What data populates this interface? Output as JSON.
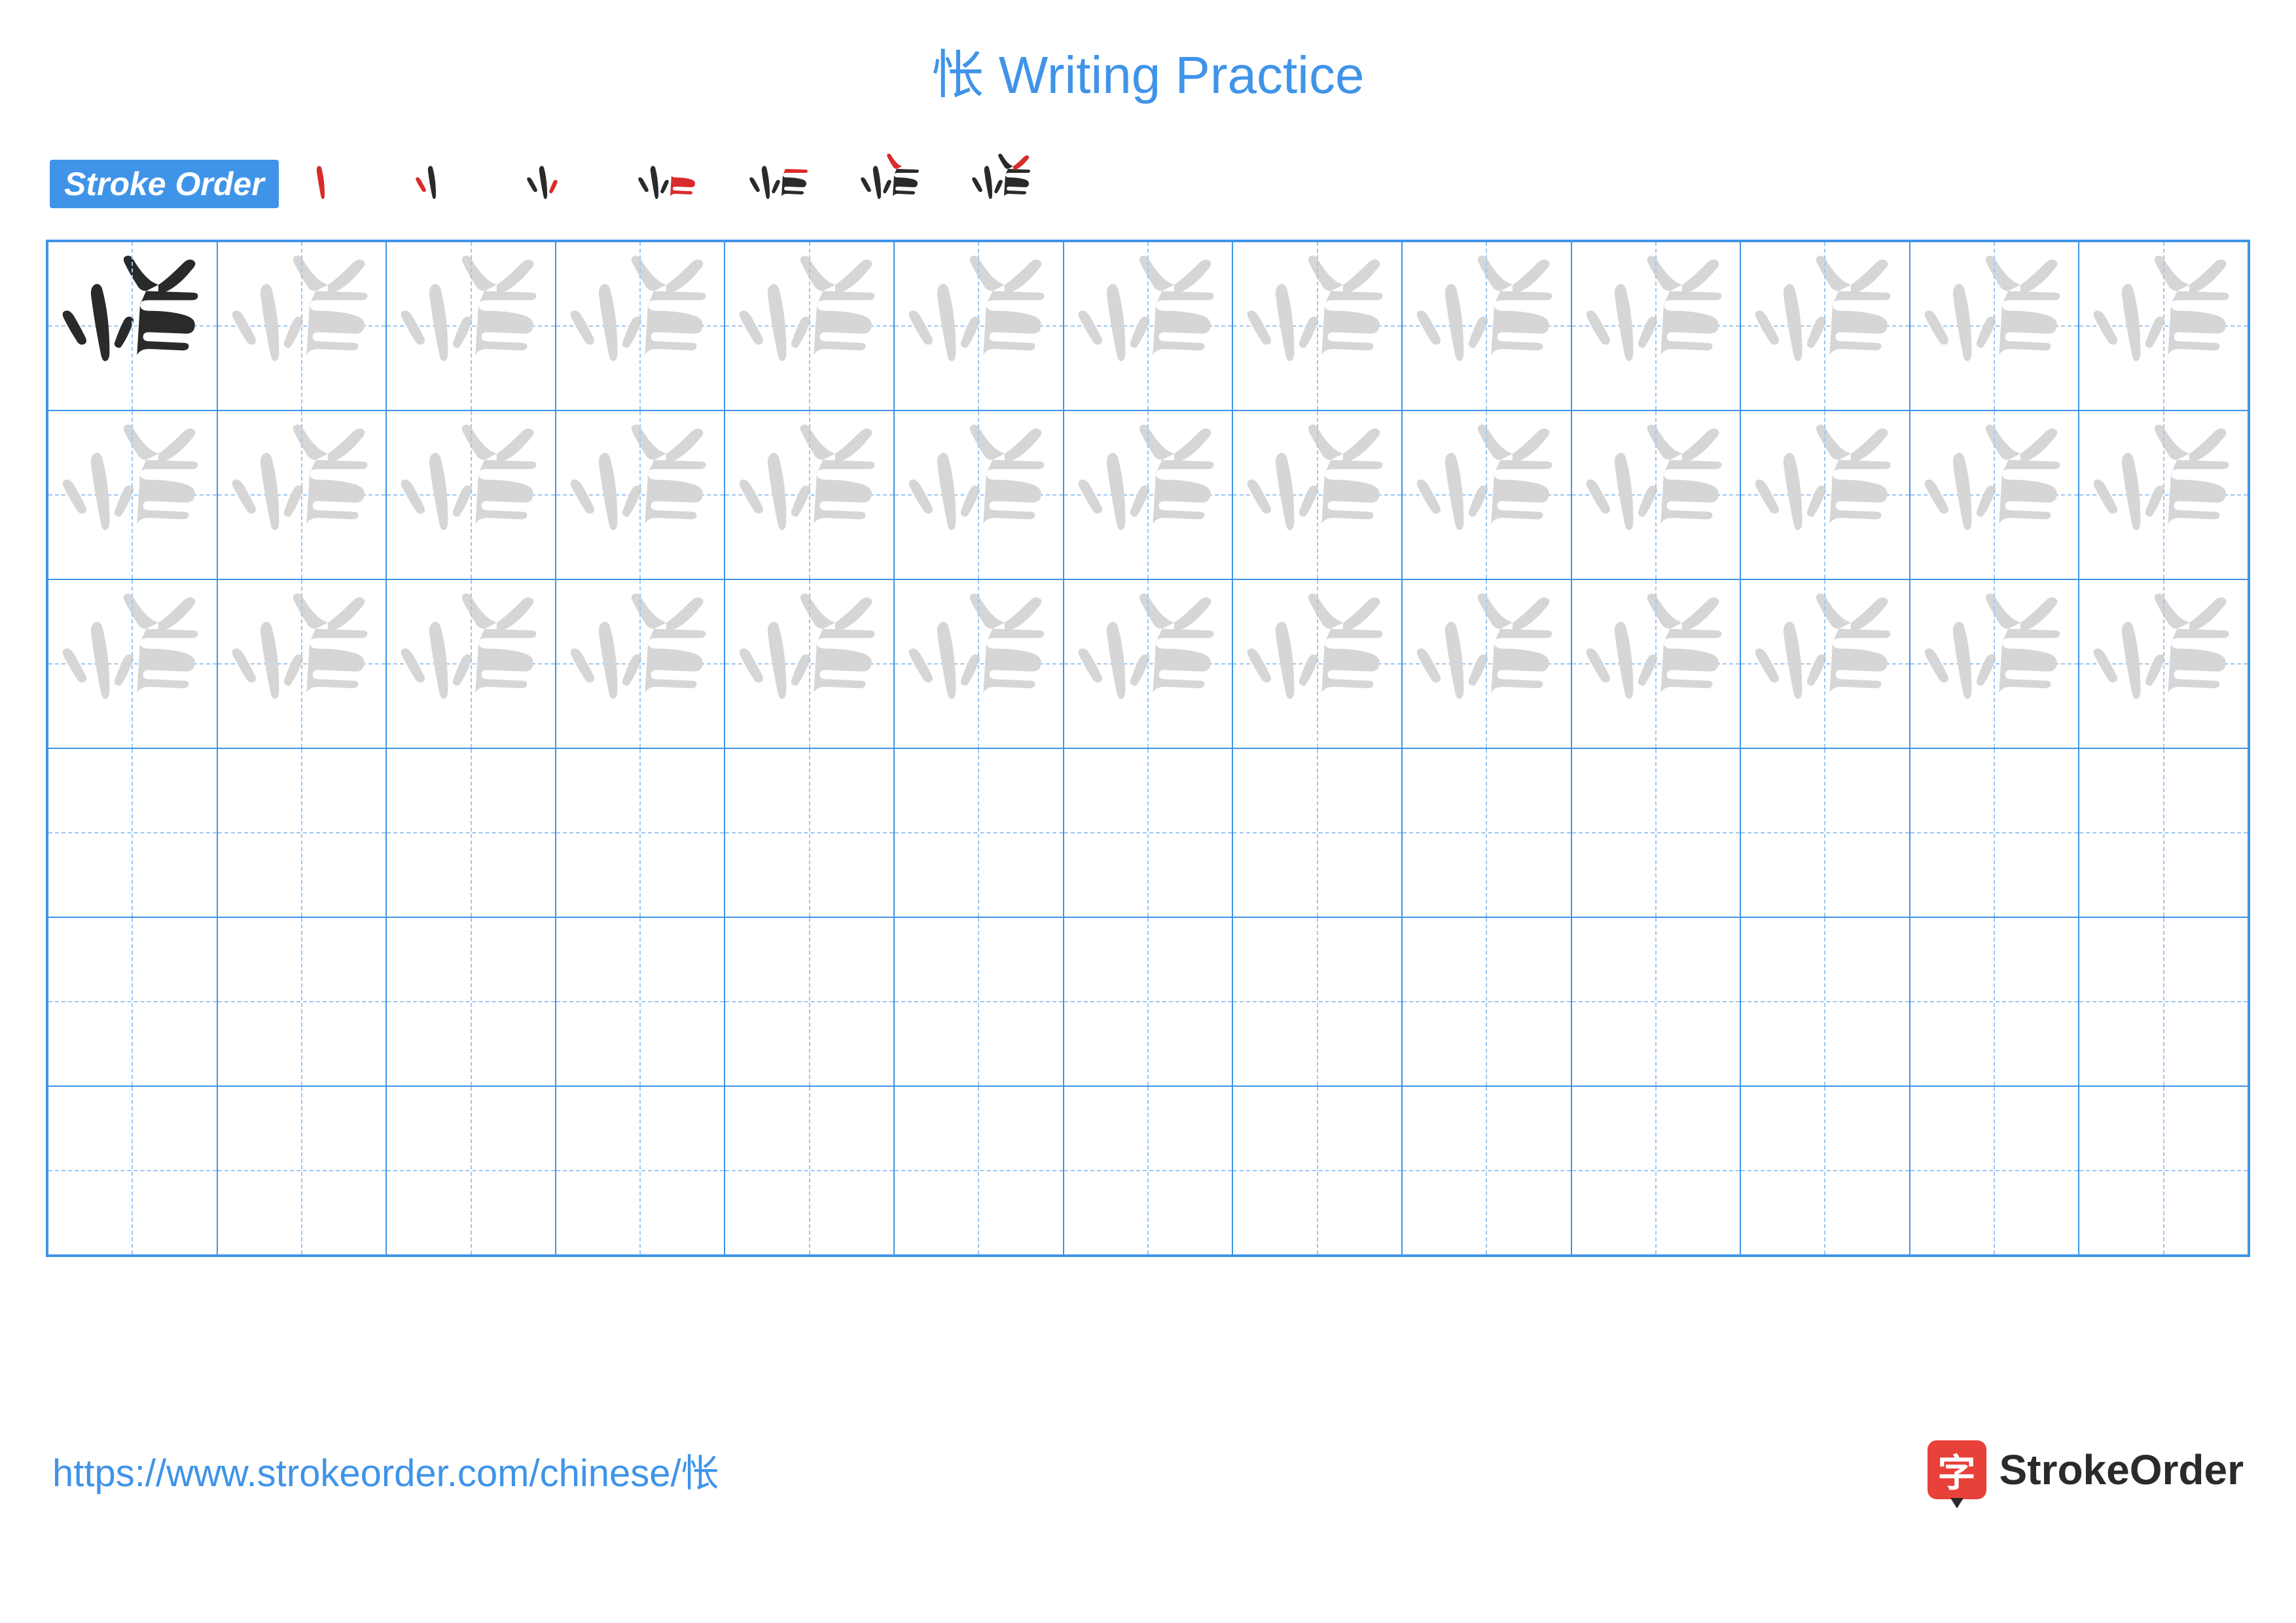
{
  "title_char": "怅",
  "title_suffix": " Writing Practice",
  "title_color": "#3f94e8",
  "stroke_label": "Stroke Order",
  "stroke_label_bg": "#3f94e8",
  "stroke_count": 7,
  "grid": {
    "cols": 13,
    "rows": 6,
    "border_color": "#3f94e8",
    "guide_color": "#9cc8f2",
    "trace_color": "#d6d6d6",
    "solid_color": "#2a2a2a",
    "trace_rows": 3,
    "first_cell_solid": true
  },
  "character_paths": [
    "M 34 72 Q 30 52 28 36 Q 27 30 30 28 Q 33 26 35 30 Q 40 48 40 72 Q 40 78 37 78 Q 35 78 34 72 Z",
    "M 18 64 Q 14 58 10 50 Q 8 46 11 45 Q 14 44 17 49 Q 21 56 24 62 Q 26 66 23 67 Q 20 68 18 64 Z",
    "M 48 68 Q 52 62 55 54 Q 57 50 54 49 Q 51 48 49 52 Q 46 58 44 64 Q 42 68 45 69 Q 47 70 48 68 Z",
    "M 58 74 Q 60 70 66 70 L 88 71 Q 92 71 92 68 Q 92 66 88 66 L 66 65 Q 62 65 62 62 Q 62 59 66 59 L 90 60 Q 96 60 96 54 Q 96 50 90 48 Q 80 45 66 45 Q 60 45 60 41",
    "M 60 41 Q 60 38 66 38 L 94 38 Q 98 38 98 35 Q 98 33 94 33 L 64 32",
    "M 64 32 Q 60 32 58 28 Q 54 22 50 14 Q 48 10 51 9 Q 54 8 56 12 Q 62 22 68 26 L 72 28",
    "M 72 28 Q 78 24 88 14 Q 92 10 95 12 Q 98 14 94 18 Q 86 28 78 32 L 72 34"
  ],
  "stroke_red": "#d92b2b",
  "stroke_black": "#2a2a2a",
  "footer_url": "https://www.strokeorder.com/chinese/怅",
  "footer_url_color": "#3f94e8",
  "brand_icon_char": "字",
  "brand_icon_bg": "#e8413a",
  "brand_text": "StrokeOrder"
}
